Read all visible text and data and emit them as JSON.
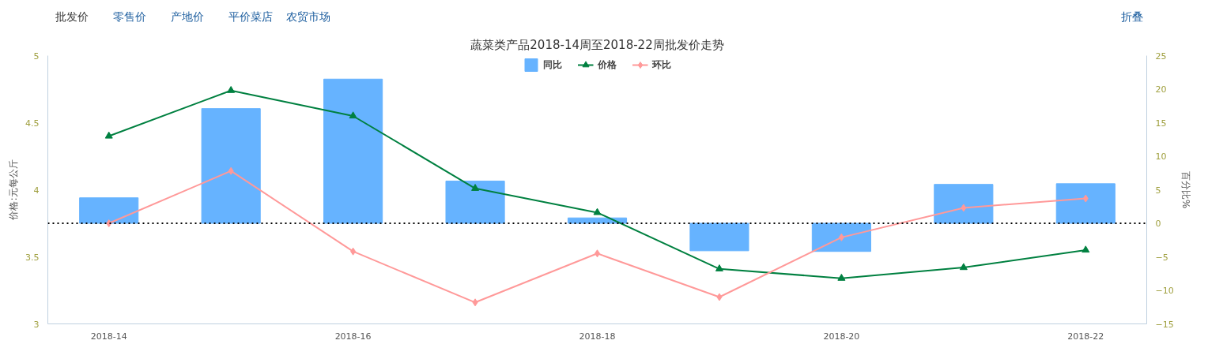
{
  "chart_data": {
    "type": "bar",
    "title": "蔬菜类产品2018-14周至2018-22周批发价走势",
    "categories": [
      "2018-14",
      null,
      "2018-16",
      null,
      "2018-18",
      null,
      "2018-20",
      null,
      "2018-22"
    ],
    "ylabel": "价格:元每公斤",
    "y2label": "百分比%",
    "ylim": [
      3,
      5
    ],
    "yticks": [
      3,
      3.5,
      4,
      4.5,
      5
    ],
    "y2lim": [
      -15,
      25
    ],
    "y2ticks": [
      -15,
      -10,
      -5,
      0,
      5,
      10,
      15,
      20,
      25
    ],
    "series": [
      {
        "name": "同比",
        "axis": "y2",
        "color": "#66b3ff",
        "values": [
          3.8,
          17.1,
          21.5,
          6.3,
          0.8,
          -4.1,
          -4.2,
          5.8,
          5.9
        ]
      },
      {
        "name": "价格",
        "type": "line",
        "axis": "y",
        "color": "#008040",
        "marker": "triangle",
        "values": [
          4.4,
          4.74,
          4.55,
          4.01,
          3.83,
          3.41,
          3.34,
          3.42,
          3.55
        ]
      },
      {
        "name": "环比",
        "type": "line",
        "axis": "y2",
        "color": "#ff9999",
        "marker": "diamond",
        "values": [
          0,
          7.8,
          -4.2,
          -11.8,
          -4.5,
          -11.0,
          -2.1,
          2.3,
          3.7
        ]
      }
    ],
    "ref_lines": [
      {
        "axis": "y2",
        "value": 0,
        "label": null,
        "color": "#000000",
        "line_style": "dotted"
      }
    ],
    "legend": "top",
    "grid": false,
    "annotations": [
      "批发价",
      "零售价",
      "产地价",
      "平价菜店",
      "农贸市场",
      "折叠"
    ]
  }
}
